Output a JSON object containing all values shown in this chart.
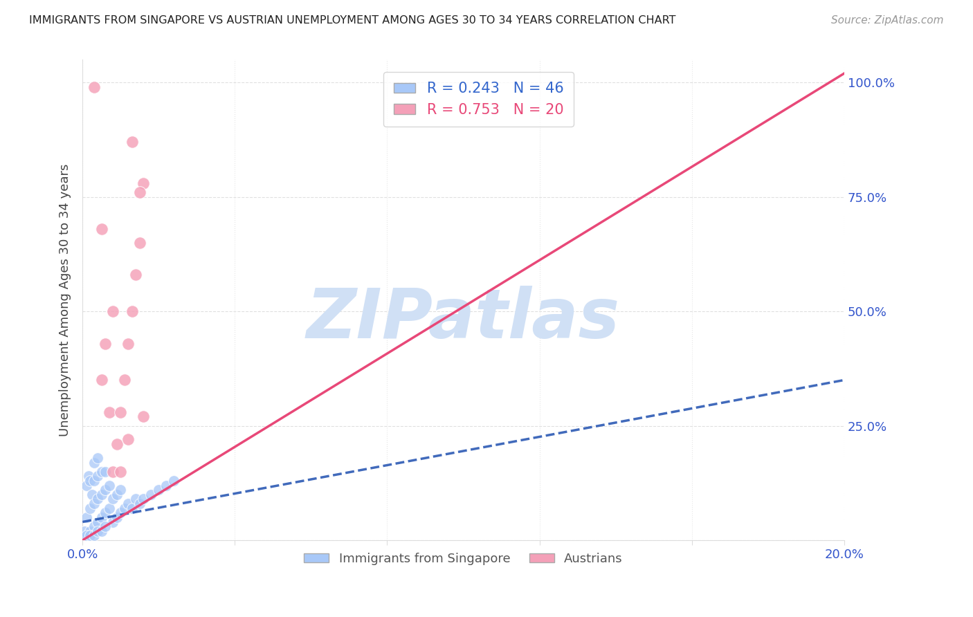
{
  "title": "IMMIGRANTS FROM SINGAPORE VS AUSTRIAN UNEMPLOYMENT AMONG AGES 30 TO 34 YEARS CORRELATION CHART",
  "source": "Source: ZipAtlas.com",
  "ylabel": "Unemployment Among Ages 30 to 34 years",
  "blue_R": 0.243,
  "blue_N": 46,
  "pink_R": 0.753,
  "pink_N": 20,
  "blue_points_x": [
    0.0005,
    0.001,
    0.001,
    0.0015,
    0.002,
    0.002,
    0.002,
    0.0025,
    0.003,
    0.003,
    0.003,
    0.003,
    0.004,
    0.004,
    0.004,
    0.004,
    0.005,
    0.005,
    0.005,
    0.006,
    0.006,
    0.006,
    0.007,
    0.007,
    0.008,
    0.008,
    0.009,
    0.009,
    0.01,
    0.01,
    0.011,
    0.012,
    0.013,
    0.014,
    0.015,
    0.016,
    0.018,
    0.02,
    0.022,
    0.024,
    0.001,
    0.002,
    0.003,
    0.004,
    0.005,
    0.006
  ],
  "blue_points_y": [
    0.02,
    0.05,
    0.12,
    0.14,
    0.02,
    0.07,
    0.13,
    0.1,
    0.03,
    0.08,
    0.13,
    0.17,
    0.04,
    0.09,
    0.14,
    0.18,
    0.05,
    0.1,
    0.15,
    0.06,
    0.11,
    0.15,
    0.07,
    0.12,
    0.04,
    0.09,
    0.05,
    0.1,
    0.06,
    0.11,
    0.07,
    0.08,
    0.07,
    0.09,
    0.08,
    0.09,
    0.1,
    0.11,
    0.12,
    0.13,
    0.01,
    0.01,
    0.01,
    0.02,
    0.02,
    0.03
  ],
  "pink_points_x": [
    0.003,
    0.005,
    0.006,
    0.007,
    0.008,
    0.009,
    0.01,
    0.011,
    0.012,
    0.013,
    0.014,
    0.015,
    0.016,
    0.013,
    0.015,
    0.016,
    0.005,
    0.008,
    0.01,
    0.012
  ],
  "pink_points_y": [
    0.99,
    0.35,
    0.43,
    0.28,
    0.15,
    0.21,
    0.28,
    0.35,
    0.43,
    0.5,
    0.58,
    0.65,
    0.78,
    0.87,
    0.76,
    0.27,
    0.68,
    0.5,
    0.15,
    0.22
  ],
  "blue_line_x": [
    0.0,
    0.2
  ],
  "blue_line_y": [
    0.04,
    0.35
  ],
  "pink_line_x": [
    0.0,
    0.2
  ],
  "pink_line_y": [
    0.0,
    1.02
  ],
  "xlim": [
    0.0,
    0.2
  ],
  "ylim": [
    0.0,
    1.05
  ],
  "xticks": [
    0.0,
    0.04,
    0.08,
    0.12,
    0.16,
    0.2
  ],
  "xtick_labels": [
    "0.0%",
    "",
    "",
    "",
    "",
    "20.0%"
  ],
  "yticks": [
    0.0,
    0.25,
    0.5,
    0.75,
    1.0
  ],
  "ytick_labels_right": [
    "",
    "25.0%",
    "50.0%",
    "75.0%",
    "100.0%"
  ],
  "background_color": "#ffffff",
  "blue_color": "#a8c8f8",
  "pink_color": "#f4a0b8",
  "blue_line_color": "#2050b0",
  "pink_line_color": "#e84878",
  "grid_color": "#dddddd",
  "watermark_text": "ZIPatlas",
  "watermark_color": "#d0e0f5",
  "title_color": "#222222",
  "source_color": "#999999",
  "axis_label_color": "#3355cc",
  "ylabel_color": "#444444",
  "legend_blue_color": "#3366cc",
  "legend_pink_color": "#e84878",
  "bottom_legend_color": "#555555"
}
